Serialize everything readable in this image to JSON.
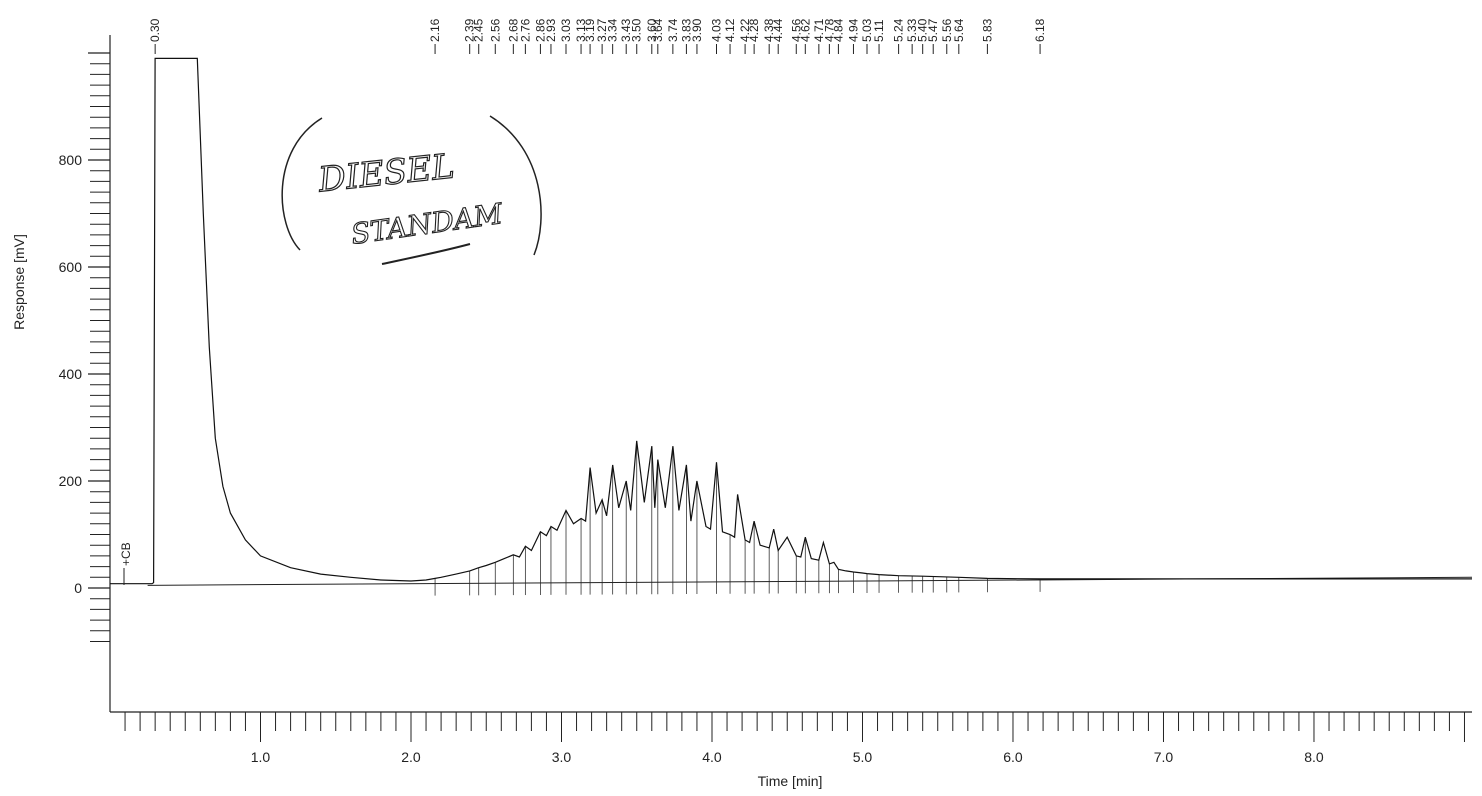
{
  "chart_data": {
    "type": "line",
    "title": "",
    "xlabel": "Time [min]",
    "ylabel": "Response [mV]",
    "xlim": [
      0,
      9.05
    ],
    "ylim": [
      -225,
      1035
    ],
    "x_ticks": [
      1.0,
      2.0,
      3.0,
      4.0,
      5.0,
      6.0,
      7.0,
      8.0
    ],
    "x_tick_labels": [
      "1.0",
      "2.0",
      "3.0",
      "4.0",
      "5.0",
      "6.0",
      "7.0",
      "8.0"
    ],
    "y_ticks": [
      0,
      200,
      400,
      600,
      800
    ],
    "y_tick_labels": [
      "0",
      "200",
      "400",
      "600",
      "800"
    ],
    "grid": false,
    "annotation_handwritten": [
      "DIESEL",
      "STANDAM"
    ],
    "marker_label": "+CB",
    "peak_labels": [
      {
        "t": 0.3,
        "label": "0.30"
      },
      {
        "t": 2.16,
        "label": "2.16"
      },
      {
        "t": 2.39,
        "label": "2.39"
      },
      {
        "t": 2.45,
        "label": "2.45"
      },
      {
        "t": 2.56,
        "label": "2.56"
      },
      {
        "t": 2.68,
        "label": "2.68"
      },
      {
        "t": 2.76,
        "label": "2.76"
      },
      {
        "t": 2.86,
        "label": "2.86"
      },
      {
        "t": 2.93,
        "label": "2.93"
      },
      {
        "t": 3.03,
        "label": "3.03"
      },
      {
        "t": 3.13,
        "label": "3.13"
      },
      {
        "t": 3.19,
        "label": "3.19"
      },
      {
        "t": 3.27,
        "label": "3.27"
      },
      {
        "t": 3.34,
        "label": "3.34"
      },
      {
        "t": 3.43,
        "label": "3.43"
      },
      {
        "t": 3.5,
        "label": "3.50"
      },
      {
        "t": 3.6,
        "label": "3.60"
      },
      {
        "t": 3.64,
        "label": "3.64"
      },
      {
        "t": 3.74,
        "label": "3.74"
      },
      {
        "t": 3.83,
        "label": "3.83"
      },
      {
        "t": 3.9,
        "label": "3.90"
      },
      {
        "t": 4.03,
        "label": "4.03"
      },
      {
        "t": 4.12,
        "label": "4.12"
      },
      {
        "t": 4.22,
        "label": "4.22"
      },
      {
        "t": 4.28,
        "label": "4.28"
      },
      {
        "t": 4.38,
        "label": "4.38"
      },
      {
        "t": 4.44,
        "label": "4.44"
      },
      {
        "t": 4.56,
        "label": "4.56"
      },
      {
        "t": 4.62,
        "label": "4.62"
      },
      {
        "t": 4.71,
        "label": "4.71"
      },
      {
        "t": 4.78,
        "label": "4.78"
      },
      {
        "t": 4.84,
        "label": "4.84"
      },
      {
        "t": 4.94,
        "label": "4.94"
      },
      {
        "t": 5.03,
        "label": "5.03"
      },
      {
        "t": 5.11,
        "label": "5.11"
      },
      {
        "t": 5.24,
        "label": "5.24"
      },
      {
        "t": 5.33,
        "label": "5.33"
      },
      {
        "t": 5.4,
        "label": "5.40"
      },
      {
        "t": 5.47,
        "label": "5.47"
      },
      {
        "t": 5.56,
        "label": "5.56"
      },
      {
        "t": 5.64,
        "label": "5.64"
      },
      {
        "t": 5.83,
        "label": "5.83"
      },
      {
        "t": 6.18,
        "label": "6.18"
      }
    ],
    "series": [
      {
        "x": [
          0.0,
          0.28,
          0.29,
          0.3,
          0.58,
          0.62,
          0.66,
          0.7,
          0.75,
          0.8,
          0.9,
          1.0,
          1.2,
          1.4,
          1.6,
          1.8,
          2.0,
          2.1,
          2.16,
          2.2,
          2.3,
          2.39,
          2.45,
          2.5,
          2.56,
          2.62,
          2.68,
          2.72,
          2.76,
          2.8,
          2.86,
          2.9,
          2.93,
          2.97,
          3.03,
          3.08,
          3.13,
          3.16,
          3.19,
          3.23,
          3.27,
          3.3,
          3.34,
          3.38,
          3.43,
          3.46,
          3.5,
          3.55,
          3.6,
          3.62,
          3.64,
          3.69,
          3.74,
          3.78,
          3.83,
          3.86,
          3.9,
          3.96,
          3.99,
          4.03,
          4.07,
          4.12,
          4.15,
          4.17,
          4.22,
          4.25,
          4.28,
          4.32,
          4.38,
          4.41,
          4.44,
          4.5,
          4.56,
          4.59,
          4.62,
          4.66,
          4.71,
          4.74,
          4.78,
          4.81,
          4.84,
          4.89,
          4.94,
          5.0,
          5.03,
          5.11,
          5.24,
          5.4,
          5.64,
          5.83,
          6.18,
          7.0,
          8.0,
          9.05
        ],
        "y": [
          8,
          8,
          10,
          990,
          990,
          700,
          450,
          280,
          190,
          140,
          90,
          60,
          38,
          26,
          20,
          15,
          13,
          15,
          18,
          20,
          26,
          32,
          38,
          42,
          48,
          55,
          62,
          58,
          78,
          70,
          105,
          98,
          115,
          108,
          145,
          120,
          130,
          125,
          225,
          140,
          165,
          135,
          230,
          150,
          200,
          145,
          275,
          160,
          265,
          150,
          240,
          150,
          265,
          145,
          230,
          125,
          200,
          115,
          110,
          235,
          105,
          100,
          95,
          175,
          90,
          85,
          125,
          80,
          75,
          110,
          70,
          95,
          60,
          58,
          95,
          55,
          52,
          85,
          45,
          48,
          35,
          32,
          30,
          28,
          27,
          25,
          23,
          22,
          20,
          18,
          17,
          17,
          17,
          17
        ]
      }
    ],
    "baseline": {
      "x": [
        0.25,
        9.05
      ],
      "y": [
        5,
        20
      ]
    }
  }
}
